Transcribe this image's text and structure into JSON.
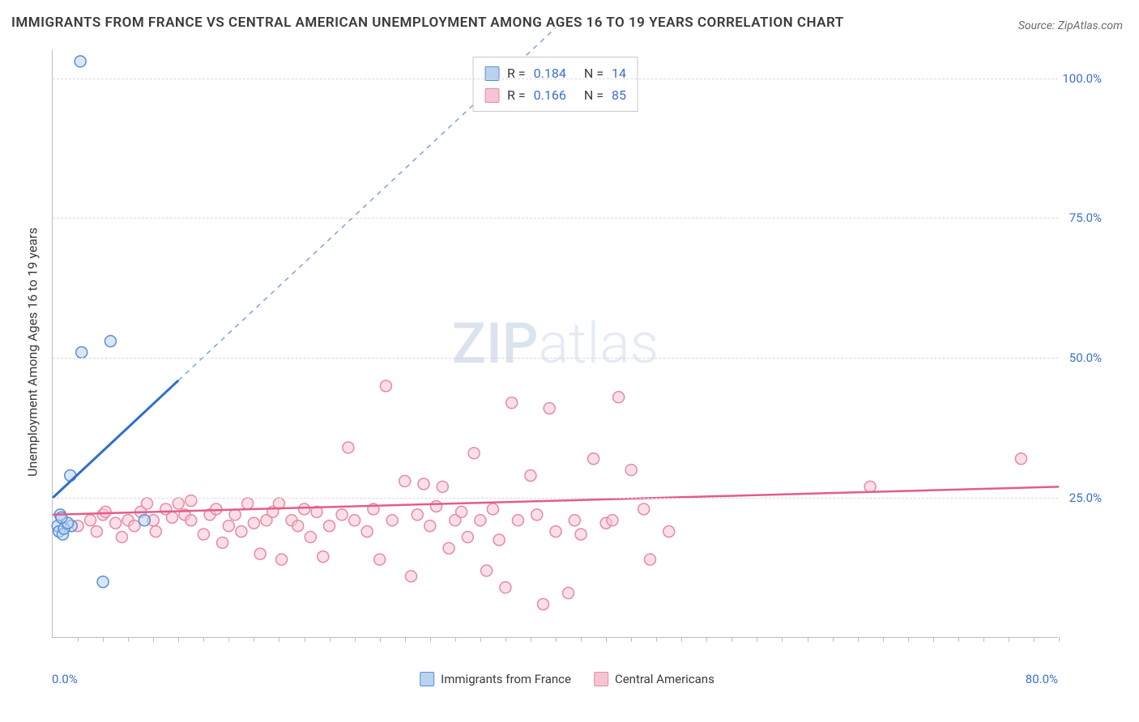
{
  "title": "IMMIGRANTS FROM FRANCE VS CENTRAL AMERICAN UNEMPLOYMENT AMONG AGES 16 TO 19 YEARS CORRELATION CHART",
  "source": "Source: ZipAtlas.com",
  "watermark_a": "ZIP",
  "watermark_b": "atlas",
  "y_axis_label": "Unemployment Among Ages 16 to 19 years",
  "chart": {
    "type": "scatter",
    "background_color": "#ffffff",
    "grid_color": "#d8d8d8",
    "axis_color": "#bdbdbd",
    "xlim": [
      0,
      80
    ],
    "ylim": [
      0,
      105
    ],
    "y_ticks": [
      25,
      50,
      75,
      100
    ],
    "y_tick_labels": [
      "25.0%",
      "50.0%",
      "75.0%",
      "100.0%"
    ],
    "x_tick_labels": [
      "0.0%",
      "80.0%"
    ],
    "x_minor_ticks": [
      2,
      4,
      6,
      8,
      10,
      12,
      14,
      16,
      18,
      20,
      22,
      24,
      26,
      28,
      30,
      32,
      34,
      36,
      38,
      40,
      42,
      44,
      46,
      48,
      50,
      52,
      54,
      56,
      58,
      60,
      62,
      64,
      66,
      68,
      70,
      72,
      74,
      76,
      78,
      80
    ],
    "marker_radius": 7,
    "marker_stroke_width": 1.5,
    "series": [
      {
        "name": "Immigrants from France",
        "color_stroke": "#5a8fd6",
        "color_fill": "#b9d2ef",
        "fill_opacity": 0.55,
        "r": "0.184",
        "n": "14",
        "trend": {
          "x1": 0,
          "y1": 25,
          "x2_solid": 10,
          "y2_solid": 46,
          "x2_dash": 40,
          "y2_dash": 109
        },
        "points": [
          [
            0.6,
            22
          ],
          [
            2.2,
            103
          ],
          [
            0.4,
            20
          ],
          [
            0.5,
            19
          ],
          [
            0.8,
            18.5
          ],
          [
            2.3,
            51
          ],
          [
            4.6,
            53
          ],
          [
            1.5,
            20
          ],
          [
            0.9,
            19.5
          ],
          [
            1.2,
            20.5
          ],
          [
            1.4,
            29
          ],
          [
            4.0,
            10
          ],
          [
            7.3,
            21
          ],
          [
            0.7,
            21.5
          ]
        ]
      },
      {
        "name": "Central Americans",
        "color_stroke": "#e68aa5",
        "color_fill": "#f6c4d2",
        "fill_opacity": 0.55,
        "r": "0.166",
        "n": "85",
        "trend": {
          "x1": 0,
          "y1": 22,
          "x2_solid": 80,
          "y2_solid": 27
        },
        "points": [
          [
            2,
            20
          ],
          [
            3,
            21
          ],
          [
            3.5,
            19
          ],
          [
            4,
            22
          ],
          [
            5,
            20.5
          ],
          [
            5.5,
            18
          ],
          [
            6,
            21
          ],
          [
            6.5,
            20
          ],
          [
            7,
            22.5
          ],
          [
            7.5,
            24
          ],
          [
            8,
            21
          ],
          [
            8.2,
            19
          ],
          [
            9,
            23
          ],
          [
            9.5,
            21.5
          ],
          [
            10,
            24
          ],
          [
            10.5,
            22
          ],
          [
            11,
            21
          ],
          [
            11,
            24.5
          ],
          [
            12,
            18.5
          ],
          [
            12.5,
            22
          ],
          [
            13,
            23
          ],
          [
            13.5,
            17
          ],
          [
            14,
            20
          ],
          [
            14.5,
            22
          ],
          [
            15,
            19
          ],
          [
            15.5,
            24
          ],
          [
            16,
            20.5
          ],
          [
            16.5,
            15
          ],
          [
            17,
            21
          ],
          [
            17.5,
            22.5
          ],
          [
            18,
            24
          ],
          [
            18.2,
            14
          ],
          [
            19,
            21
          ],
          [
            19.5,
            20
          ],
          [
            20,
            23
          ],
          [
            20.5,
            18
          ],
          [
            21,
            22.5
          ],
          [
            21.5,
            14.5
          ],
          [
            22,
            20
          ],
          [
            23,
            22
          ],
          [
            23.5,
            34
          ],
          [
            24,
            21
          ],
          [
            25,
            19
          ],
          [
            25.5,
            23
          ],
          [
            26,
            14
          ],
          [
            26.5,
            45
          ],
          [
            27,
            21
          ],
          [
            28,
            28
          ],
          [
            28.5,
            11
          ],
          [
            29,
            22
          ],
          [
            29.5,
            27.5
          ],
          [
            30,
            20
          ],
          [
            30.5,
            23.5
          ],
          [
            31,
            27
          ],
          [
            31.5,
            16
          ],
          [
            32,
            21
          ],
          [
            32.5,
            22.5
          ],
          [
            33,
            18
          ],
          [
            33.5,
            33
          ],
          [
            34,
            21
          ],
          [
            34.5,
            12
          ],
          [
            35,
            23
          ],
          [
            35.5,
            17.5
          ],
          [
            36,
            9
          ],
          [
            36.5,
            42
          ],
          [
            37,
            21
          ],
          [
            38,
            29
          ],
          [
            38.5,
            22
          ],
          [
            39,
            6
          ],
          [
            39.5,
            41
          ],
          [
            40,
            19
          ],
          [
            41,
            8
          ],
          [
            41.5,
            21
          ],
          [
            42,
            18.5
          ],
          [
            43,
            32
          ],
          [
            44,
            20.5
          ],
          [
            44.5,
            21
          ],
          [
            45,
            43
          ],
          [
            46,
            30
          ],
          [
            47,
            23
          ],
          [
            47.5,
            14
          ],
          [
            49,
            19
          ],
          [
            65,
            27
          ],
          [
            77,
            32
          ],
          [
            4.2,
            22.5
          ]
        ]
      }
    ]
  },
  "legend": {
    "series1": "Immigrants from France",
    "series2": "Central Americans"
  }
}
